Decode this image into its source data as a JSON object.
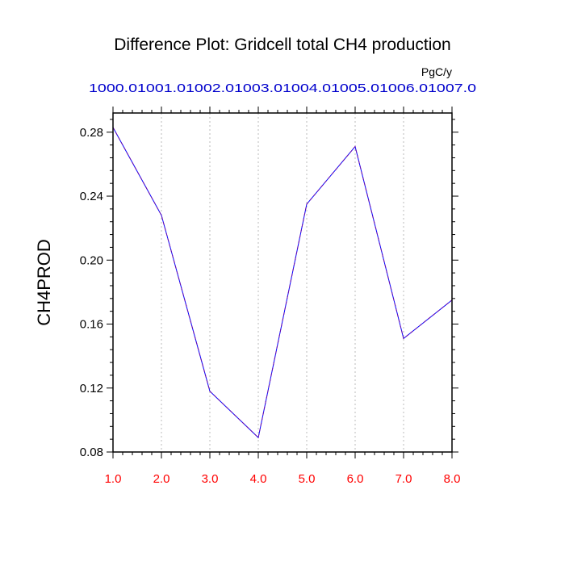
{
  "chart_data": {
    "type": "line",
    "title": "Difference Plot: Gridcell total CH4 production",
    "ylabel": "CH4PROD",
    "units": "PgC/y",
    "x": [
      1.0,
      2.0,
      3.0,
      4.0,
      5.0,
      6.0,
      7.0,
      8.0
    ],
    "xlim": [
      1.0,
      8.0
    ],
    "ylim": [
      0.08,
      0.292
    ],
    "x_tick_labels": [
      "1.0",
      "2.0",
      "3.0",
      "4.0",
      "5.0",
      "6.0",
      "7.0",
      "8.0"
    ],
    "top_tick_labels": [
      "1000.0",
      "1001.0",
      "1002.0",
      "1003.0",
      "1004.0",
      "1005.0",
      "1006.0",
      "1007.0"
    ],
    "y_ticks": [
      0.08,
      0.12,
      0.16,
      0.2,
      0.24,
      0.28
    ],
    "y_tick_labels": [
      "0.08",
      "0.12",
      "0.16",
      "0.20",
      "0.24",
      "0.28"
    ],
    "series": [
      {
        "values": [
          0.283,
          0.228,
          0.118,
          0.089,
          0.235,
          0.271,
          0.151,
          0.175
        ],
        "color": "#6a0dad",
        "dash_color": "#0000ff"
      }
    ],
    "grid": "vertical dotted",
    "x_tick_color": "#ff0000",
    "top_tick_color": "#0000cc"
  }
}
